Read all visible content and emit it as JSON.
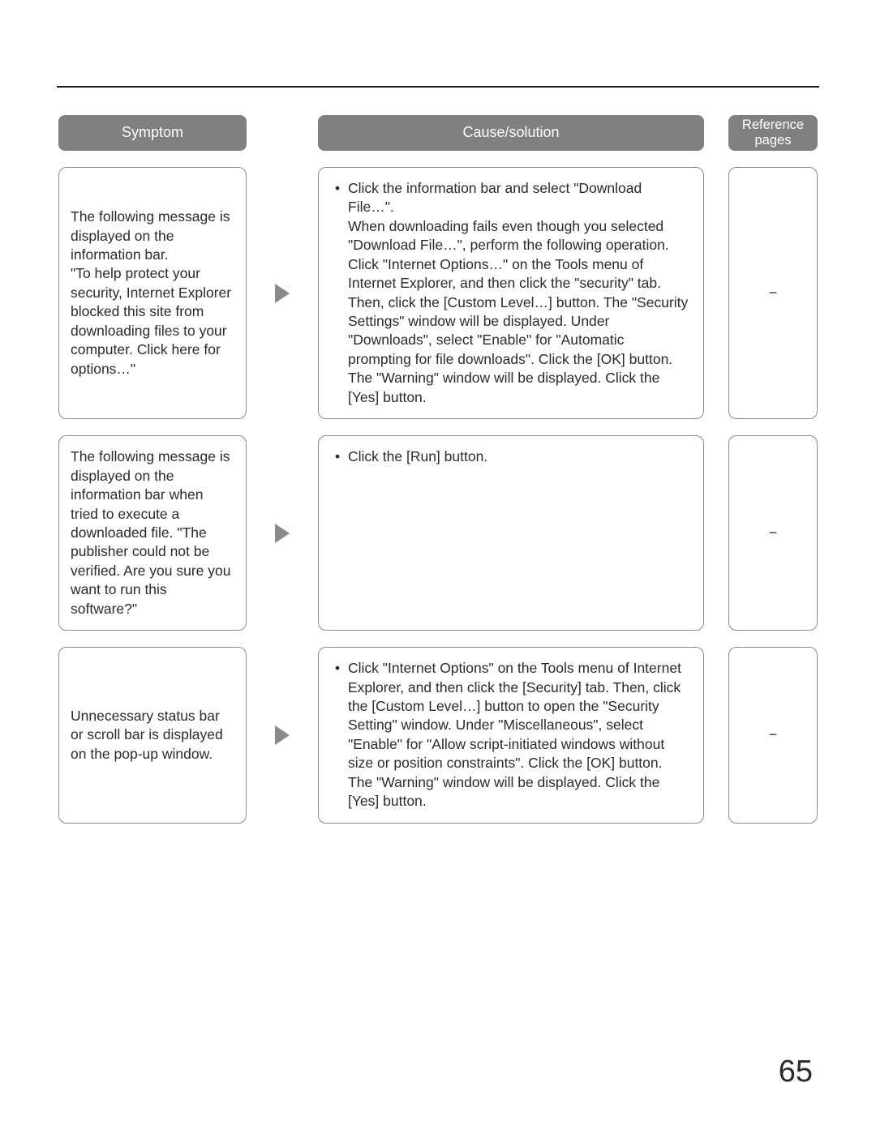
{
  "headers": {
    "symptom": "Symptom",
    "cause": "Cause/solution",
    "reference": "Reference\npages"
  },
  "rows": [
    {
      "symptom": "The following message is displayed on the information bar.\n\"To help protect your security, Internet Explorer blocked this site from downloading files to your computer. Click here for options…\"",
      "cause_bullet": "Click the information bar and select \"Download File…\".",
      "cause_rest": "When downloading fails even though you selected \"Download File…\", perform the following operation. Click \"Internet Options…\" on the Tools menu of Internet Explorer, and then click the \"security\" tab. Then, click the [Custom Level…] button. The \"Security Settings\" window will be displayed. Under \"Downloads\", select \"Enable\" for \"Automatic prompting for file downloads\". Click the [OK] button.\nThe \"Warning\" window will be displayed. Click the [Yes] button.",
      "ref": "−"
    },
    {
      "symptom": "The following message is displayed on the information bar when tried to execute a downloaded file. \"The publisher could not be verified. Are you sure you want to run this software?\"",
      "cause_bullet": "Click the [Run] button.",
      "cause_rest": "",
      "ref": "−"
    },
    {
      "symptom": "Unnecessary status bar or scroll bar is displayed on the pop-up window.",
      "cause_bullet": "Click \"Internet Options\" on the Tools menu of Internet Explorer, and then click the [Security] tab. Then, click the [Custom Level…] button to open the \"Security Setting\" window. Under \"Miscellaneous\", select \"Enable\" for \"Allow script-initiated windows without size or position constraints\". Click the [OK] button.",
      "cause_rest": "The \"Warning\" window will be displayed. Click the [Yes] button.",
      "ref": "−"
    }
  ],
  "page_number": "65",
  "colors": {
    "header_bg": "#808080",
    "header_text": "#ffffff",
    "border": "#8a8a8a",
    "text": "#2b2b2b",
    "arrow": "#8a8a8a",
    "rule": "#1a1a1a"
  }
}
